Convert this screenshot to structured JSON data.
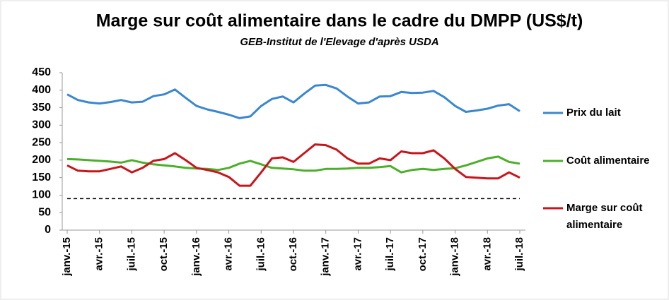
{
  "chart_data": {
    "type": "line",
    "title": "Marge sur coût alimentaire dans le cadre du DMPP (US$/t)",
    "subtitle": "GEB-Institut de l'Elevage d'après USDA",
    "categories": [
      "janv.-15",
      null,
      null,
      "avr.-15",
      null,
      null,
      "juil.-15",
      null,
      null,
      "oct.-15",
      null,
      null,
      "janv.-16",
      null,
      null,
      "avr.-16",
      null,
      null,
      "juil.-16",
      null,
      null,
      "oct.-16",
      null,
      null,
      "janv.-17",
      null,
      null,
      "avr.-17",
      null,
      null,
      "juil.-17",
      null,
      null,
      "oct.-17",
      null,
      null,
      "janv.-18",
      null,
      null,
      "avr.-18",
      null,
      null,
      "juil.-18"
    ],
    "series": [
      {
        "name": "Prix du lait",
        "color": "#3a87d0",
        "values": [
          388,
          372,
          365,
          362,
          366,
          372,
          365,
          367,
          383,
          388,
          402,
          378,
          355,
          345,
          338,
          330,
          320,
          325,
          355,
          375,
          382,
          365,
          390,
          413,
          415,
          405,
          382,
          362,
          365,
          382,
          383,
          395,
          392,
          393,
          398,
          380,
          355,
          338,
          342,
          347,
          356,
          360,
          340
        ]
      },
      {
        "name": "Coût alimentaire",
        "color": "#4caf2a",
        "values": [
          203,
          202,
          200,
          198,
          196,
          193,
          200,
          193,
          188,
          185,
          182,
          178,
          176,
          175,
          172,
          178,
          190,
          198,
          188,
          178,
          176,
          174,
          170,
          170,
          175,
          175,
          176,
          178,
          178,
          180,
          183,
          165,
          172,
          175,
          172,
          175,
          177,
          185,
          195,
          205,
          210,
          195,
          190
        ]
      },
      {
        "name": "Marge sur coût alimentaire",
        "color": "#c8151b",
        "values": [
          185,
          170,
          168,
          168,
          175,
          182,
          165,
          178,
          198,
          203,
          220,
          200,
          178,
          172,
          165,
          152,
          127,
          127,
          165,
          205,
          208,
          195,
          220,
          245,
          243,
          230,
          205,
          190,
          190,
          205,
          200,
          225,
          220,
          220,
          228,
          205,
          175,
          152,
          150,
          148,
          148,
          165,
          150
        ]
      }
    ],
    "reference_line": 90,
    "ylim": [
      0,
      450
    ],
    "yticks": [
      0,
      50,
      100,
      150,
      200,
      250,
      300,
      350,
      400,
      450
    ],
    "grid": false
  }
}
